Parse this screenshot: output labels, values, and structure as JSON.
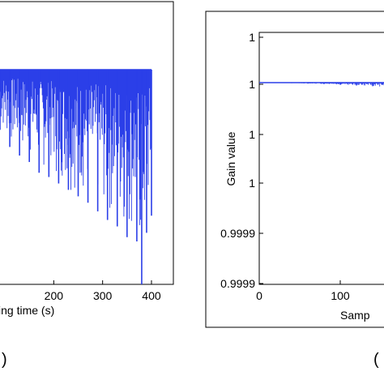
{
  "chart_data": [
    {
      "type": "line",
      "xlabel": "ing time (s)",
      "x_ticks": [
        "200",
        "300",
        "400"
      ],
      "xlim": [
        90,
        405
      ],
      "series_color": "#2b3fe8",
      "panel_label": ")",
      "series": [
        {
          "x": [
            90,
            110,
            130,
            150,
            170,
            190,
            210,
            230,
            250,
            270,
            290,
            310,
            330,
            350,
            370,
            380,
            390,
            400
          ],
          "y_min_norm": [
            0.72,
            0.64,
            0.6,
            0.57,
            0.52,
            0.5,
            0.47,
            0.44,
            0.41,
            0.38,
            0.34,
            0.3,
            0.27,
            0.22,
            0.2,
            0.0,
            0.24,
            0.32
          ],
          "y_max_norm": [
            1,
            1,
            1,
            1,
            1,
            1,
            1,
            1,
            1,
            1,
            1,
            1,
            1,
            1,
            1,
            1,
            1,
            1
          ]
        }
      ]
    },
    {
      "type": "line",
      "xlabel": "Samp",
      "ylabel": "Gain value",
      "x_ticks": [
        "0",
        "100"
      ],
      "xlim": [
        0,
        170
      ],
      "y_ticks": [
        "1",
        "1",
        "1",
        "1",
        "0.9999",
        "0.9999"
      ],
      "series_color": "#2b3fe8",
      "panel_label": "(",
      "series": [
        {
          "x": [
            0,
            20,
            40,
            60,
            80,
            100,
            120,
            140,
            160,
            170
          ],
          "y_min_norm": [
            1.0,
            0.995,
            0.99,
            0.98,
            0.97,
            0.955,
            0.94,
            0.925,
            0.905,
            0.9
          ],
          "y_max_norm": [
            1,
            1,
            1,
            1,
            1,
            1,
            1,
            1,
            1,
            1
          ]
        }
      ]
    }
  ]
}
